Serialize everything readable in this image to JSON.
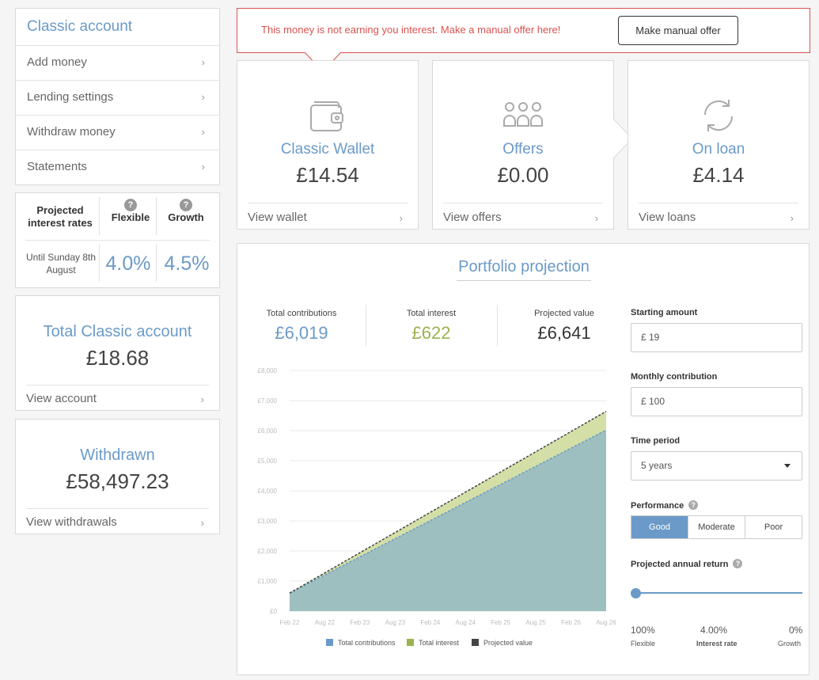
{
  "sidebar": {
    "title": "Classic account",
    "items": [
      {
        "label": "Add money"
      },
      {
        "label": "Lending settings"
      },
      {
        "label": "Withdraw money"
      },
      {
        "label": "Statements"
      }
    ]
  },
  "rates": {
    "header_label": "Projected interest rates",
    "col1": "Flexible",
    "col2": "Growth",
    "period": "Until Sunday 8th August",
    "flexible_rate": "4.0%",
    "growth_rate": "4.5%"
  },
  "total_account": {
    "title": "Total Classic account",
    "value": "£18.68",
    "link": "View account"
  },
  "withdrawn": {
    "title": "Withdrawn",
    "value": "£58,497.23",
    "link": "View withdrawals"
  },
  "alert": {
    "message": "This money is not earning you interest. Make a manual offer here!",
    "button": "Make manual offer"
  },
  "cards": [
    {
      "title": "Classic Wallet",
      "value": "£14.54",
      "link": "View wallet",
      "icon": "wallet-icon"
    },
    {
      "title": "Offers",
      "value": "£0.00",
      "link": "View offers",
      "icon": "offers-icon"
    },
    {
      "title": "On loan",
      "value": "£4.14",
      "link": "View loans",
      "icon": "refresh-icon"
    }
  ],
  "portfolio": {
    "title": "Portfolio projection",
    "stats": {
      "contrib_label": "Total contributions",
      "contrib_value": "£6,019",
      "interest_label": "Total interest",
      "interest_value": "£622",
      "projected_label": "Projected value",
      "projected_value": "£6,641"
    },
    "form": {
      "starting_label": "Starting amount",
      "starting_value": "£  19",
      "monthly_label": "Monthly contribution",
      "monthly_value": "£  100",
      "period_label": "Time period",
      "period_value": "5 years",
      "performance_label": "Performance",
      "performance_options": [
        "Good",
        "Moderate",
        "Poor"
      ],
      "performance_selected": "Good",
      "return_label": "Projected annual return",
      "slider": {
        "left_value": "100%",
        "left_label": "Flexible",
        "mid_value": "4.00%",
        "mid_label": "Interest rate",
        "right_value": "0%",
        "right_label": "Growth",
        "position": 0
      }
    }
  },
  "colors": {
    "accent": "#6b9ac8",
    "interest": "#9bb24d",
    "alert": "#d9534f",
    "contrib_fill": "#9ebfbf",
    "interest_fill": "#d3dfa6"
  },
  "chart_data": {
    "type": "area",
    "x": [
      "Feb 22",
      "Aug 22",
      "Feb 23",
      "Aug 23",
      "Feb 24",
      "Aug 24",
      "Feb 25",
      "Aug 25",
      "Feb 26",
      "Aug 26"
    ],
    "ylim": [
      0,
      8000
    ],
    "yticks": [
      "£0",
      "£1,000",
      "£2,000",
      "£3,000",
      "£4,000",
      "£5,000",
      "£6,000",
      "£7,000",
      "£8,000"
    ],
    "series": [
      {
        "name": "Total contributions",
        "color": "#6b9ac8",
        "start": 600,
        "end": 6019
      },
      {
        "name": "Total interest",
        "color": "#9bb24d",
        "start": 0,
        "end": 622
      },
      {
        "name": "Projected value",
        "color": "#444444",
        "start": 600,
        "end": 6641
      }
    ]
  }
}
